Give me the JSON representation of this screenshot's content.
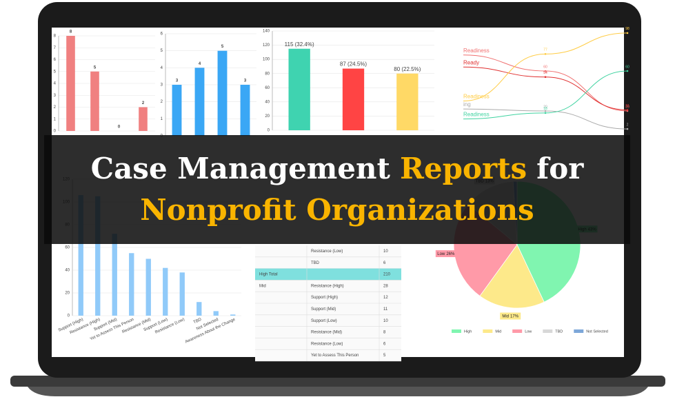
{
  "banner": {
    "line1": [
      "Case Management",
      "Reports",
      "for"
    ],
    "line2": "Nonprofit Organizations"
  },
  "bar_chart_a": {
    "type": "bar",
    "categories": [
      null,
      null,
      null,
      null
    ],
    "values": [
      8,
      5,
      0,
      2
    ],
    "color": "#f08080",
    "ylim": [
      0,
      8
    ],
    "yticks": [
      0,
      1,
      2,
      3,
      4,
      5,
      6,
      7,
      8
    ]
  },
  "bar_chart_b": {
    "type": "bar",
    "categories": [
      null,
      null,
      null,
      null
    ],
    "values": [
      3,
      4,
      5,
      3
    ],
    "color": "#3aa7f5",
    "ylim": [
      0,
      6
    ],
    "yticks": [
      0,
      1,
      2,
      3,
      4,
      5,
      6
    ]
  },
  "bar_chart_c": {
    "type": "bar",
    "categories": [
      null,
      null,
      null
    ],
    "values": [
      115,
      87,
      80
    ],
    "value_labels": [
      "115 (32.4%)",
      "87 (24.5%)",
      "80 (22.5%)"
    ],
    "colors": [
      "#3fd3b0",
      "#ff4444",
      "#ffd966"
    ],
    "ylim": [
      0,
      140
    ],
    "yticks": [
      0,
      20,
      40,
      60,
      80,
      100,
      120,
      140
    ]
  },
  "line_chart": {
    "type": "line",
    "x": [
      0,
      1,
      2
    ],
    "ylim": [
      0,
      100
    ],
    "series": [
      {
        "name": "Readiness",
        "color": "#f07070",
        "values": [
          76,
          60,
          20
        ]
      },
      {
        "name": "Ready",
        "color": "#e02f2f",
        "values": [
          64,
          54,
          21
        ]
      },
      {
        "name": "Readiness",
        "color": "#ffcc44",
        "values": [
          30,
          77,
          98
        ]
      },
      {
        "name": "ing",
        "color": "#aaaaaa",
        "values": [
          22,
          20,
          2
        ]
      },
      {
        "name": "Readiness",
        "color": "#3fd3a0",
        "values": [
          12,
          18,
          60
        ]
      }
    ]
  },
  "bar_chart_d": {
    "type": "bar",
    "categories": [
      "Support (High)",
      "Resistance (High)",
      "Support (Mid)",
      "Yet to Assess This Person",
      "Resistance (Mid)",
      "Support (Low)",
      "Resistance (Low)",
      "TBD",
      "Not Selected",
      "Awareness About the Change"
    ],
    "values": [
      106,
      105,
      72,
      55,
      50,
      42,
      38,
      12,
      4,
      1
    ],
    "color": "#90caf9",
    "ylim": [
      0,
      120
    ],
    "yticks": [
      0,
      20,
      40,
      60,
      80,
      100,
      120
    ]
  },
  "table": {
    "highlight_row": 2,
    "rows": [
      [
        null,
        "Resistance (Low)",
        10
      ],
      [
        null,
        "TBD",
        6
      ],
      [
        "High Total",
        null,
        210
      ],
      [
        "Mid",
        "Resistance (High)",
        28
      ],
      [
        null,
        "Support (High)",
        12
      ],
      [
        null,
        "Support (Mid)",
        11
      ],
      [
        null,
        "Support (Low)",
        10
      ],
      [
        null,
        "Resistance (Mid)",
        8
      ],
      [
        null,
        "Resistance (Low)",
        6
      ],
      [
        null,
        "Yet to Assess This Person",
        5
      ]
    ]
  },
  "pie_chart": {
    "type": "pie",
    "categories": [
      "High",
      "Mid",
      "Low",
      "TBD",
      "Not Selected"
    ],
    "values": [
      43,
      17,
      26,
      13,
      1
    ],
    "value_labels": [
      "43%",
      "17%",
      "26%",
      "13%",
      "1%"
    ],
    "colors": [
      "#80f5b0",
      "#fde98a",
      "#ff9aa8",
      "#d8d8d8",
      "#7da7d9"
    ],
    "labeled": [
      0,
      1,
      2,
      3
    ]
  }
}
